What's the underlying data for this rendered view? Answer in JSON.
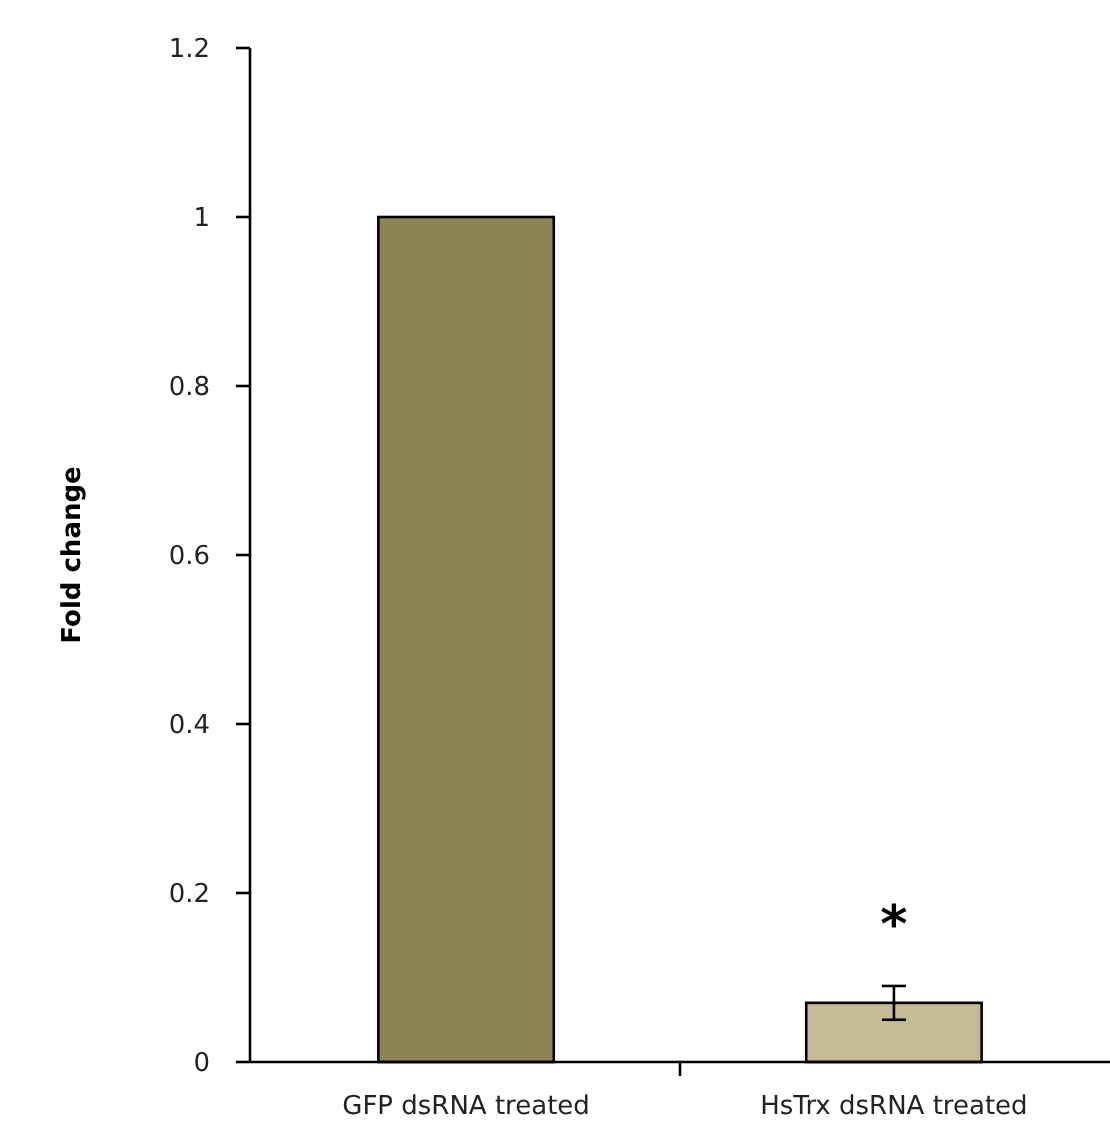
{
  "chart_data": {
    "type": "bar",
    "ylabel": "Fold change",
    "categories": [
      "GFP dsRNA treated",
      "HsTrx dsRNA treated"
    ],
    "values": [
      1,
      0.07
    ],
    "errors": [
      null,
      0.02
    ],
    "colors": [
      "#8b8454",
      "#c4bb96"
    ],
    "ylim": [
      0,
      1.2
    ],
    "yticks": [
      0,
      0.2,
      0.4,
      0.6,
      0.8,
      1,
      1.2
    ],
    "annotations": [
      "*"
    ]
  }
}
